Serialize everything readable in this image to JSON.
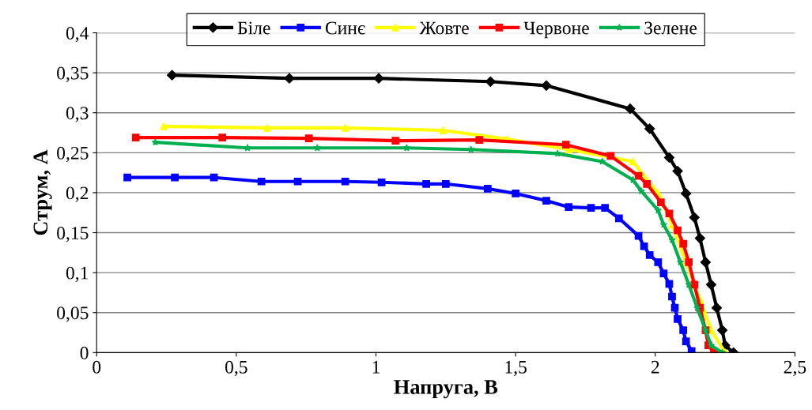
{
  "chart_data": {
    "type": "line",
    "xlabel": "Напруга, В",
    "ylabel": "Струм, А",
    "xlim": [
      0,
      2.5
    ],
    "xticks": [
      0,
      {
        "value": 0.5,
        "label": "0,5"
      },
      1,
      {
        "value": 1.5,
        "label": "1,5"
      },
      2,
      {
        "value": 2.5,
        "label": "2,5"
      }
    ],
    "ylim": [
      0,
      0.4
    ],
    "yticks": [
      0,
      {
        "value": 0.05,
        "label": "0,05"
      },
      {
        "value": 0.1,
        "label": "0,1"
      },
      {
        "value": 0.15,
        "label": "0,15"
      },
      {
        "value": 0.2,
        "label": "0,2"
      },
      {
        "value": 0.25,
        "label": "0,25"
      },
      {
        "value": 0.3,
        "label": "0,3"
      },
      {
        "value": 0.35,
        "label": "0,35"
      },
      {
        "value": 0.4,
        "label": "0,4"
      }
    ],
    "grid": "y",
    "legend": "top",
    "line_style": "solid",
    "series": [
      {
        "name": "Біле",
        "color": "#000000",
        "marker": "diamond",
        "x": [
          0.27,
          0.69,
          1.01,
          1.41,
          1.61,
          1.91,
          1.98,
          2.05,
          2.08,
          2.11,
          2.14,
          2.16,
          2.18,
          2.2,
          2.22,
          2.24,
          2.25,
          2.28
        ],
        "values": [
          0.347,
          0.343,
          0.343,
          0.339,
          0.334,
          0.305,
          0.28,
          0.244,
          0.227,
          0.199,
          0.169,
          0.143,
          0.113,
          0.085,
          0.056,
          0.028,
          0.009,
          0.0
        ]
      },
      {
        "name": "Синє",
        "color": "#0000ff",
        "marker": "square",
        "x": [
          0.11,
          0.28,
          0.42,
          0.59,
          0.72,
          0.89,
          1.02,
          1.18,
          1.25,
          1.4,
          1.5,
          1.61,
          1.69,
          1.77,
          1.82,
          1.87,
          1.94,
          1.96,
          1.98,
          2.01,
          2.03,
          2.05,
          2.06,
          2.07,
          2.08,
          2.1,
          2.11,
          2.13
        ],
        "values": [
          0.219,
          0.219,
          0.219,
          0.214,
          0.214,
          0.214,
          0.213,
          0.211,
          0.211,
          0.205,
          0.199,
          0.19,
          0.182,
          0.181,
          0.181,
          0.168,
          0.146,
          0.133,
          0.122,
          0.113,
          0.099,
          0.086,
          0.07,
          0.056,
          0.042,
          0.028,
          0.014,
          0.002
        ]
      },
      {
        "name": "Жовте",
        "color": "#ffff00",
        "marker": "triangle",
        "x": [
          0.24,
          0.61,
          0.89,
          1.24,
          1.47,
          1.69,
          1.92,
          2.01,
          2.06,
          2.11,
          2.16,
          2.2,
          2.25
        ],
        "values": [
          0.283,
          0.281,
          0.281,
          0.278,
          0.267,
          0.254,
          0.239,
          0.199,
          0.16,
          0.113,
          0.066,
          0.028,
          0.0
        ]
      },
      {
        "name": "Червоне",
        "color": "#ff0000",
        "marker": "square",
        "x": [
          0.14,
          0.45,
          0.76,
          1.07,
          1.37,
          1.68,
          1.84,
          1.94,
          1.97,
          2.02,
          2.05,
          2.08,
          2.1,
          2.12,
          2.14,
          2.16,
          2.18,
          2.19,
          2.21
        ],
        "values": [
          0.269,
          0.269,
          0.268,
          0.265,
          0.266,
          0.26,
          0.246,
          0.221,
          0.211,
          0.188,
          0.174,
          0.153,
          0.136,
          0.113,
          0.085,
          0.056,
          0.028,
          0.009,
          0.0
        ]
      },
      {
        "name": "Зелене",
        "color": "#00b050",
        "marker": "star",
        "x": [
          0.21,
          0.54,
          0.79,
          1.11,
          1.34,
          1.65,
          1.81,
          1.92,
          1.95,
          2.01,
          2.03,
          2.06,
          2.09,
          2.12,
          2.15,
          2.18,
          2.2,
          2.24
        ],
        "values": [
          0.263,
          0.256,
          0.256,
          0.256,
          0.254,
          0.249,
          0.239,
          0.216,
          0.202,
          0.178,
          0.16,
          0.141,
          0.113,
          0.085,
          0.056,
          0.028,
          0.009,
          0.0
        ]
      }
    ]
  }
}
